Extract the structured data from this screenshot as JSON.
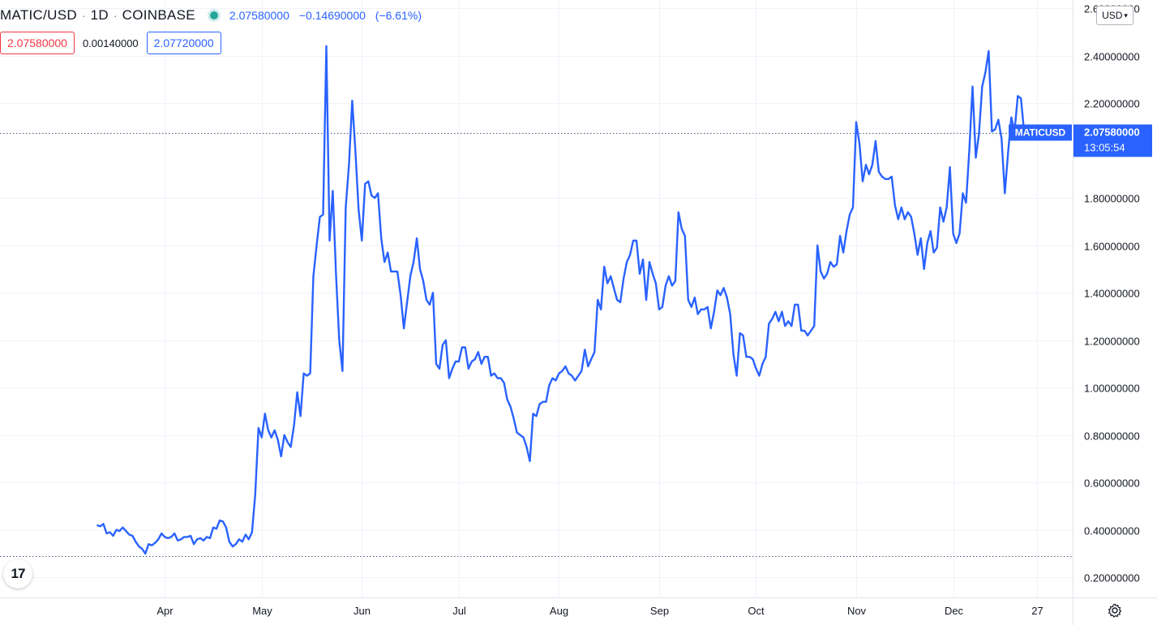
{
  "legend": {
    "symbol": "MATIC/USD",
    "interval": "1D",
    "exchange": "COINBASE",
    "last": "2.07580000",
    "change": "−0.14690000",
    "change_pct": "(−6.61%)"
  },
  "quote": {
    "bid": "2.07580000",
    "spread": "0.00140000",
    "ask": "2.07720000"
  },
  "currency_button": "USD",
  "last_price_tag": {
    "symbol": "MATICUSD",
    "price": "2.07580000",
    "countdown": "13:05:54",
    "value": 2.0758
  },
  "logo_text": "17",
  "colors": {
    "line": "#2962ff",
    "price_tag": "#2962ff",
    "grid": "#f0f3fa",
    "axis_text": "#131722",
    "bid": "#f23645",
    "status_dot": "#26a69a"
  },
  "chart_data": {
    "type": "line",
    "title": "",
    "xlabel": "",
    "ylabel": "",
    "x_ticks": [
      {
        "label": "Apr",
        "day": 0
      },
      {
        "label": "May",
        "day": 30
      },
      {
        "label": "Jun",
        "day": 61
      },
      {
        "label": "Jul",
        "day": 91
      },
      {
        "label": "Aug",
        "day": 122
      },
      {
        "label": "Sep",
        "day": 153
      },
      {
        "label": "Oct",
        "day": 183
      },
      {
        "label": "Nov",
        "day": 214
      },
      {
        "label": "Dec",
        "day": 244
      },
      {
        "label": "27",
        "day": 270
      }
    ],
    "y_ticks": [
      {
        "value": 0.2,
        "label": "0.20000000"
      },
      {
        "value": 0.4,
        "label": "0.40000000"
      },
      {
        "value": 0.6,
        "label": "0.60000000"
      },
      {
        "value": 0.8,
        "label": "0.80000000"
      },
      {
        "value": 1.0,
        "label": "1.00000000"
      },
      {
        "value": 1.2,
        "label": "1.20000000"
      },
      {
        "value": 1.4,
        "label": "1.40000000"
      },
      {
        "value": 1.6,
        "label": "1.60000000"
      },
      {
        "value": 1.8,
        "label": "1.80000000"
      },
      {
        "value": 2.2,
        "label": "2.20000000"
      },
      {
        "value": 2.4,
        "label": "2.40000000"
      },
      {
        "value": 2.6,
        "label": "2.60000000"
      }
    ],
    "xlim": [
      -51,
      281
    ],
    "ylim": [
      0.115,
      2.635
    ],
    "grid": true,
    "reference_lines": [
      2.0758,
      0.29
    ],
    "series": [
      {
        "points": [
          [
            -21,
            0.42
          ],
          [
            -20,
            0.415
          ],
          [
            -19,
            0.425
          ],
          [
            -18,
            0.385
          ],
          [
            -17,
            0.39
          ],
          [
            -16,
            0.375
          ],
          [
            -15,
            0.4
          ],
          [
            -14,
            0.395
          ],
          [
            -13,
            0.41
          ],
          [
            -12,
            0.395
          ],
          [
            -11,
            0.38
          ],
          [
            -10,
            0.375
          ],
          [
            -9,
            0.35
          ],
          [
            -8,
            0.33
          ],
          [
            -7,
            0.32
          ],
          [
            -6,
            0.3
          ],
          [
            -5,
            0.34
          ],
          [
            -4,
            0.335
          ],
          [
            -3,
            0.345
          ],
          [
            -2,
            0.36
          ],
          [
            -1,
            0.385
          ],
          [
            0,
            0.37
          ],
          [
            1,
            0.365
          ],
          [
            2,
            0.37
          ],
          [
            3,
            0.385
          ],
          [
            4,
            0.355
          ],
          [
            5,
            0.36
          ],
          [
            6,
            0.37
          ],
          [
            7,
            0.37
          ],
          [
            8,
            0.375
          ],
          [
            9,
            0.34
          ],
          [
            10,
            0.36
          ],
          [
            11,
            0.365
          ],
          [
            12,
            0.355
          ],
          [
            13,
            0.37
          ],
          [
            14,
            0.365
          ],
          [
            15,
            0.41
          ],
          [
            16,
            0.405
          ],
          [
            17,
            0.44
          ],
          [
            18,
            0.435
          ],
          [
            19,
            0.41
          ],
          [
            20,
            0.35
          ],
          [
            21,
            0.33
          ],
          [
            22,
            0.34
          ],
          [
            23,
            0.36
          ],
          [
            24,
            0.35
          ],
          [
            25,
            0.38
          ],
          [
            26,
            0.36
          ],
          [
            27,
            0.39
          ],
          [
            28,
            0.55
          ],
          [
            29,
            0.83
          ],
          [
            30,
            0.79
          ],
          [
            31,
            0.89
          ],
          [
            32,
            0.82
          ],
          [
            33,
            0.79
          ],
          [
            34,
            0.82
          ],
          [
            35,
            0.78
          ],
          [
            36,
            0.71
          ],
          [
            37,
            0.8
          ],
          [
            38,
            0.77
          ],
          [
            39,
            0.75
          ],
          [
            40,
            0.84
          ],
          [
            41,
            0.98
          ],
          [
            42,
            0.88
          ],
          [
            43,
            1.06
          ],
          [
            44,
            1.05
          ],
          [
            45,
            1.06
          ],
          [
            46,
            1.47
          ],
          [
            47,
            1.6
          ],
          [
            48,
            1.72
          ],
          [
            49,
            1.73
          ],
          [
            50,
            2.44
          ],
          [
            51,
            1.62
          ],
          [
            52,
            1.83
          ],
          [
            53,
            1.48
          ],
          [
            54,
            1.2
          ],
          [
            55,
            1.07
          ],
          [
            56,
            1.76
          ],
          [
            57,
            1.94
          ],
          [
            58,
            2.21
          ],
          [
            59,
            2.0
          ],
          [
            60,
            1.75
          ],
          [
            61,
            1.62
          ],
          [
            62,
            1.86
          ],
          [
            63,
            1.87
          ],
          [
            64,
            1.81
          ],
          [
            65,
            1.8
          ],
          [
            66,
            1.82
          ],
          [
            67,
            1.63
          ],
          [
            68,
            1.53
          ],
          [
            69,
            1.57
          ],
          [
            70,
            1.49
          ],
          [
            71,
            1.49
          ],
          [
            72,
            1.49
          ],
          [
            73,
            1.39
          ],
          [
            74,
            1.25
          ],
          [
            75,
            1.36
          ],
          [
            76,
            1.47
          ],
          [
            77,
            1.53
          ],
          [
            78,
            1.63
          ],
          [
            79,
            1.5
          ],
          [
            80,
            1.45
          ],
          [
            81,
            1.37
          ],
          [
            82,
            1.35
          ],
          [
            83,
            1.4
          ],
          [
            84,
            1.1
          ],
          [
            85,
            1.08
          ],
          [
            86,
            1.18
          ],
          [
            87,
            1.2
          ],
          [
            88,
            1.04
          ],
          [
            89,
            1.08
          ],
          [
            90,
            1.11
          ],
          [
            91,
            1.11
          ],
          [
            92,
            1.17
          ],
          [
            93,
            1.17
          ],
          [
            94,
            1.08
          ],
          [
            95,
            1.11
          ],
          [
            96,
            1.12
          ],
          [
            97,
            1.15
          ],
          [
            98,
            1.1
          ],
          [
            99,
            1.13
          ],
          [
            100,
            1.13
          ],
          [
            101,
            1.05
          ],
          [
            102,
            1.06
          ],
          [
            103,
            1.04
          ],
          [
            104,
            1.04
          ],
          [
            105,
            1.02
          ],
          [
            106,
            0.95
          ],
          [
            107,
            0.92
          ],
          [
            108,
            0.87
          ],
          [
            109,
            0.81
          ],
          [
            110,
            0.8
          ],
          [
            111,
            0.79
          ],
          [
            112,
            0.75
          ],
          [
            113,
            0.69
          ],
          [
            114,
            0.89
          ],
          [
            115,
            0.88
          ],
          [
            116,
            0.93
          ],
          [
            117,
            0.94
          ],
          [
            118,
            0.94
          ],
          [
            119,
            1.01
          ],
          [
            120,
            1.04
          ],
          [
            121,
            1.03
          ],
          [
            122,
            1.06
          ],
          [
            123,
            1.07
          ],
          [
            124,
            1.09
          ],
          [
            125,
            1.06
          ],
          [
            126,
            1.05
          ],
          [
            127,
            1.03
          ],
          [
            128,
            1.05
          ],
          [
            129,
            1.07
          ],
          [
            130,
            1.16
          ],
          [
            131,
            1.09
          ],
          [
            132,
            1.12
          ],
          [
            133,
            1.15
          ],
          [
            134,
            1.37
          ],
          [
            135,
            1.33
          ],
          [
            136,
            1.51
          ],
          [
            137,
            1.44
          ],
          [
            138,
            1.47
          ],
          [
            139,
            1.42
          ],
          [
            140,
            1.37
          ],
          [
            141,
            1.36
          ],
          [
            142,
            1.46
          ],
          [
            143,
            1.53
          ],
          [
            144,
            1.56
          ],
          [
            145,
            1.62
          ],
          [
            146,
            1.62
          ],
          [
            147,
            1.48
          ],
          [
            148,
            1.54
          ],
          [
            149,
            1.37
          ],
          [
            150,
            1.53
          ],
          [
            151,
            1.48
          ],
          [
            152,
            1.44
          ],
          [
            153,
            1.33
          ],
          [
            154,
            1.34
          ],
          [
            155,
            1.43
          ],
          [
            156,
            1.47
          ],
          [
            157,
            1.43
          ],
          [
            158,
            1.45
          ],
          [
            159,
            1.74
          ],
          [
            160,
            1.67
          ],
          [
            161,
            1.64
          ],
          [
            162,
            1.37
          ],
          [
            163,
            1.34
          ],
          [
            164,
            1.38
          ],
          [
            165,
            1.31
          ],
          [
            166,
            1.33
          ],
          [
            167,
            1.33
          ],
          [
            168,
            1.34
          ],
          [
            169,
            1.25
          ],
          [
            170,
            1.32
          ],
          [
            171,
            1.41
          ],
          [
            172,
            1.39
          ],
          [
            173,
            1.42
          ],
          [
            174,
            1.38
          ],
          [
            175,
            1.31
          ],
          [
            176,
            1.14
          ],
          [
            177,
            1.05
          ],
          [
            178,
            1.23
          ],
          [
            179,
            1.22
          ],
          [
            180,
            1.13
          ],
          [
            181,
            1.13
          ],
          [
            182,
            1.12
          ],
          [
            183,
            1.08
          ],
          [
            184,
            1.05
          ],
          [
            185,
            1.1
          ],
          [
            186,
            1.13
          ],
          [
            187,
            1.27
          ],
          [
            188,
            1.29
          ],
          [
            189,
            1.32
          ],
          [
            190,
            1.28
          ],
          [
            191,
            1.32
          ],
          [
            192,
            1.26
          ],
          [
            193,
            1.28
          ],
          [
            194,
            1.26
          ],
          [
            195,
            1.35
          ],
          [
            196,
            1.35
          ],
          [
            197,
            1.24
          ],
          [
            198,
            1.24
          ],
          [
            199,
            1.22
          ],
          [
            200,
            1.24
          ],
          [
            201,
            1.26
          ],
          [
            202,
            1.6
          ],
          [
            203,
            1.49
          ],
          [
            204,
            1.46
          ],
          [
            205,
            1.48
          ],
          [
            206,
            1.53
          ],
          [
            207,
            1.51
          ],
          [
            208,
            1.52
          ],
          [
            209,
            1.64
          ],
          [
            210,
            1.57
          ],
          [
            211,
            1.66
          ],
          [
            212,
            1.73
          ],
          [
            213,
            1.76
          ],
          [
            214,
            2.12
          ],
          [
            215,
            2.03
          ],
          [
            216,
            1.87
          ],
          [
            217,
            1.94
          ],
          [
            218,
            1.9
          ],
          [
            219,
            1.94
          ],
          [
            220,
            2.04
          ],
          [
            221,
            1.91
          ],
          [
            222,
            1.89
          ],
          [
            223,
            1.88
          ],
          [
            224,
            1.88
          ],
          [
            225,
            1.89
          ],
          [
            226,
            1.77
          ],
          [
            227,
            1.71
          ],
          [
            228,
            1.76
          ],
          [
            229,
            1.71
          ],
          [
            230,
            1.74
          ],
          [
            231,
            1.72
          ],
          [
            232,
            1.65
          ],
          [
            233,
            1.56
          ],
          [
            234,
            1.63
          ],
          [
            235,
            1.5
          ],
          [
            236,
            1.61
          ],
          [
            237,
            1.66
          ],
          [
            238,
            1.57
          ],
          [
            239,
            1.59
          ],
          [
            240,
            1.76
          ],
          [
            241,
            1.7
          ],
          [
            242,
            1.76
          ],
          [
            243,
            1.93
          ],
          [
            244,
            1.65
          ],
          [
            245,
            1.61
          ],
          [
            246,
            1.65
          ],
          [
            247,
            1.82
          ],
          [
            248,
            1.78
          ],
          [
            249,
            2.0
          ],
          [
            250,
            2.27
          ],
          [
            251,
            1.97
          ],
          [
            252,
            2.07
          ],
          [
            253,
            2.27
          ],
          [
            254,
            2.33
          ],
          [
            255,
            2.42
          ],
          [
            256,
            2.08
          ],
          [
            257,
            2.09
          ],
          [
            258,
            2.13
          ],
          [
            259,
            2.05
          ],
          [
            260,
            1.82
          ],
          [
            261,
            1.99
          ],
          [
            262,
            2.14
          ],
          [
            263,
            2.08
          ],
          [
            264,
            2.23
          ],
          [
            265,
            2.22
          ],
          [
            266,
            2.0758
          ]
        ]
      }
    ]
  }
}
